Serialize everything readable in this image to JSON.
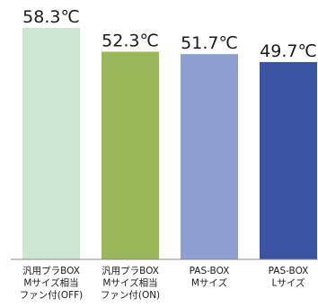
{
  "chart_data": {
    "type": "bar",
    "unit": "℃",
    "categories": [
      [
        "汎用プラBOX",
        "Mサイズ相当",
        "ファン付(OFF)"
      ],
      [
        "汎用プラBOX",
        "Mサイズ相当",
        "ファン付(ON)"
      ],
      [
        "PAS-BOX",
        "Mサイズ"
      ],
      [
        "PAS-BOX",
        "Lサイズ"
      ]
    ],
    "values": [
      58.3,
      52.3,
      51.7,
      49.7
    ],
    "value_labels": [
      "58.3℃",
      "52.3℃",
      "51.7℃",
      "49.7℃"
    ],
    "colors": [
      "#cde6d1",
      "#9ab85a",
      "#8d9ecf",
      "#3a54a3"
    ],
    "axis_color": "#888888",
    "title": "",
    "xlabel": "",
    "ylabel": "",
    "ylim": [
      0,
      58.3
    ],
    "grid": false,
    "legend": "none"
  }
}
